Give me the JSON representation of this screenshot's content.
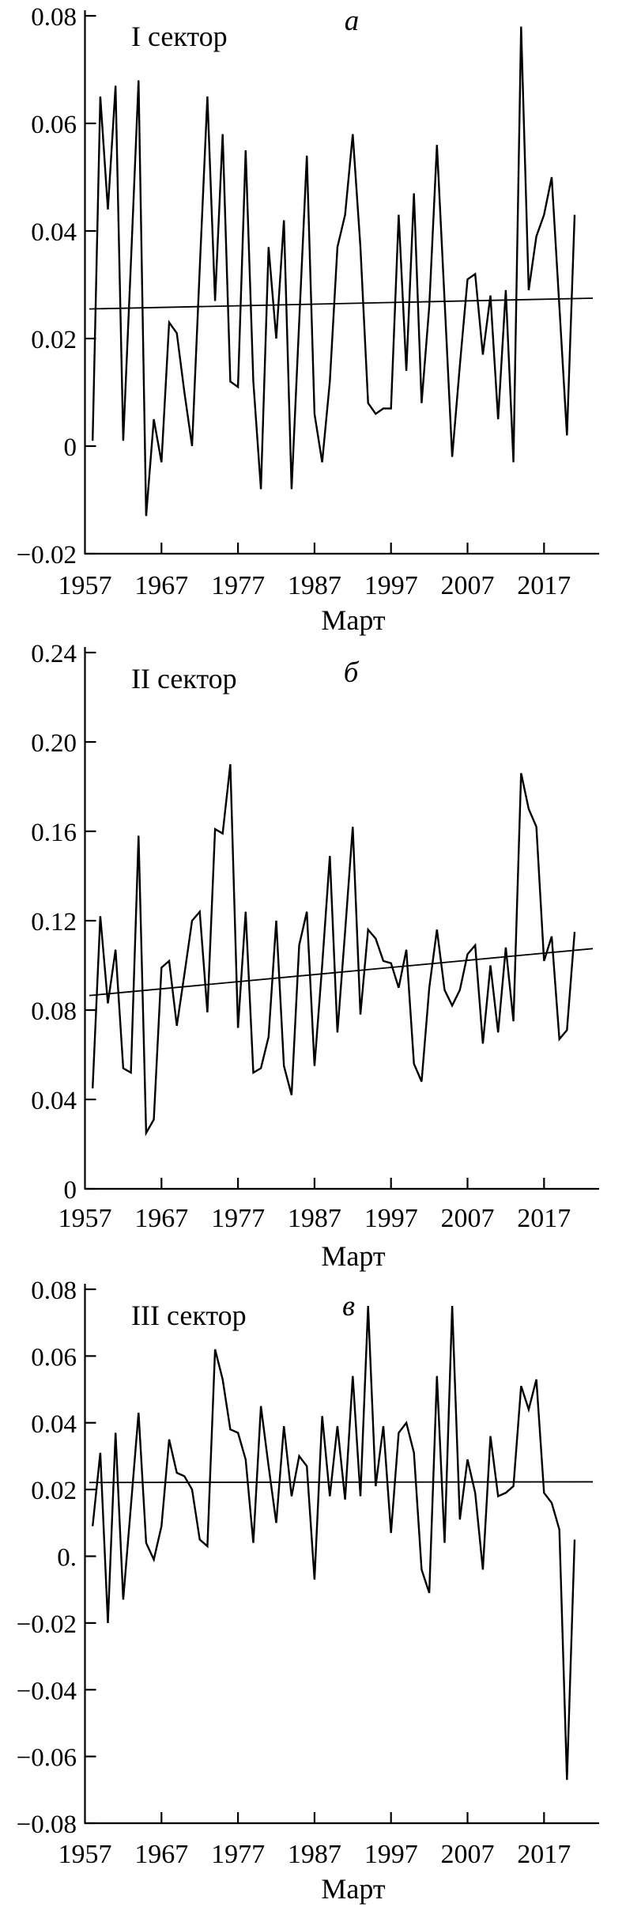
{
  "figure": {
    "background_color": "#ffffff",
    "line_color": "#000000",
    "xlabel": "Март"
  },
  "chart_data": [
    {
      "type": "line",
      "panel_letter": "а",
      "title": "I сектор",
      "xlabel": "Март",
      "x_start_year": 1958,
      "x_end_year": 2021,
      "xlim": [
        1957,
        2024
      ],
      "ylim": [
        -0.02,
        0.08
      ],
      "grid": false,
      "xtick_labels": [
        "1957",
        "1967",
        "1977",
        "1987",
        "1997",
        "2007",
        "2017"
      ],
      "xtick_years": [
        1957,
        1967,
        1977,
        1987,
        1997,
        2007,
        2017
      ],
      "ytick_values": [
        0.08,
        0.06,
        0.04,
        0.02,
        0,
        -0.02
      ],
      "ytick_labels": [
        "0.08",
        "0.06",
        "0.04",
        "0.02",
        "0",
        "−0.02"
      ],
      "values": [
        0.001,
        0.065,
        0.044,
        0.067,
        0.001,
        0.034,
        0.068,
        -0.013,
        0.005,
        -0.003,
        0.023,
        0.021,
        0.01,
        0.0,
        0.033,
        0.065,
        0.027,
        0.058,
        0.012,
        0.011,
        0.055,
        0.012,
        -0.008,
        0.037,
        0.02,
        0.042,
        -0.008,
        0.023,
        0.054,
        0.006,
        -0.003,
        0.012,
        0.037,
        0.043,
        0.058,
        0.037,
        0.008,
        0.006,
        0.007,
        0.007,
        0.043,
        0.014,
        0.047,
        0.008,
        0.026,
        0.056,
        0.027,
        -0.002,
        0.015,
        0.031,
        0.032,
        0.017,
        0.028,
        0.005,
        0.029,
        -0.003,
        0.078,
        0.029,
        0.039,
        0.043,
        0.05,
        0.026,
        0.002,
        0.043
      ],
      "trend": {
        "y_start": 0.0255,
        "y_end": 0.0275
      }
    },
    {
      "type": "line",
      "panel_letter": "б",
      "title": "II сектор",
      "xlabel": "Март",
      "x_start_year": 1958,
      "x_end_year": 2021,
      "xlim": [
        1957,
        2024
      ],
      "ylim": [
        0,
        0.24
      ],
      "grid": false,
      "xtick_labels": [
        "1957",
        "1967",
        "1977",
        "1987",
        "1997",
        "2007",
        "2017"
      ],
      "xtick_years": [
        1957,
        1967,
        1977,
        1987,
        1997,
        2007,
        2017
      ],
      "ytick_values": [
        0.24,
        0.2,
        0.16,
        0.12,
        0.08,
        0.04,
        0
      ],
      "ytick_labels": [
        "0.24",
        "0.20",
        "0.16",
        "0.12",
        "0.08",
        "0.04",
        "0"
      ],
      "values": [
        0.045,
        0.122,
        0.083,
        0.107,
        0.054,
        0.052,
        0.158,
        0.025,
        0.031,
        0.099,
        0.102,
        0.073,
        0.096,
        0.12,
        0.124,
        0.079,
        0.161,
        0.159,
        0.19,
        0.072,
        0.124,
        0.052,
        0.054,
        0.068,
        0.12,
        0.055,
        0.042,
        0.109,
        0.124,
        0.055,
        0.1,
        0.149,
        0.07,
        0.115,
        0.162,
        0.078,
        0.116,
        0.112,
        0.102,
        0.101,
        0.09,
        0.107,
        0.056,
        0.048,
        0.09,
        0.116,
        0.089,
        0.082,
        0.089,
        0.105,
        0.109,
        0.065,
        0.1,
        0.07,
        0.108,
        0.075,
        0.186,
        0.17,
        0.162,
        0.102,
        0.113,
        0.067,
        0.071,
        0.115
      ],
      "trend": {
        "y_start": 0.0865,
        "y_end": 0.1075
      }
    },
    {
      "type": "line",
      "panel_letter": "в",
      "title": "III сектор",
      "xlabel": "Март",
      "x_start_year": 1958,
      "x_end_year": 2021,
      "xlim": [
        1957,
        2024
      ],
      "ylim": [
        -0.08,
        0.08
      ],
      "grid": false,
      "xtick_labels": [
        "1957",
        "1967",
        "1977",
        "1987",
        "1997",
        "2007",
        "2017"
      ],
      "xtick_years": [
        1957,
        1967,
        1977,
        1987,
        1997,
        2007,
        2017
      ],
      "ytick_values": [
        0.08,
        0.06,
        0.04,
        0.02,
        0,
        -0.02,
        -0.04,
        -0.06,
        -0.08
      ],
      "ytick_labels": [
        "0.08",
        "0.06",
        "0.04",
        "0.02",
        "0.",
        "−0.02",
        "−0.04",
        "−0.06",
        "−0.08"
      ],
      "values": [
        0.009,
        0.031,
        -0.02,
        0.037,
        -0.013,
        0.015,
        0.043,
        0.004,
        -0.001,
        0.009,
        0.035,
        0.025,
        0.024,
        0.02,
        0.005,
        0.003,
        0.062,
        0.053,
        0.038,
        0.037,
        0.029,
        0.004,
        0.045,
        0.027,
        0.01,
        0.039,
        0.018,
        0.03,
        0.027,
        -0.007,
        0.042,
        0.018,
        0.039,
        0.017,
        0.054,
        0.018,
        0.075,
        0.021,
        0.039,
        0.007,
        0.037,
        0.04,
        0.031,
        -0.004,
        -0.011,
        0.054,
        0.004,
        0.075,
        0.011,
        0.029,
        0.019,
        -0.004,
        0.036,
        0.018,
        0.019,
        0.021,
        0.051,
        0.044,
        0.053,
        0.019,
        0.016,
        0.008,
        -0.067,
        0.005
      ],
      "trend": {
        "y_start": 0.0221,
        "y_end": 0.0223
      }
    }
  ]
}
